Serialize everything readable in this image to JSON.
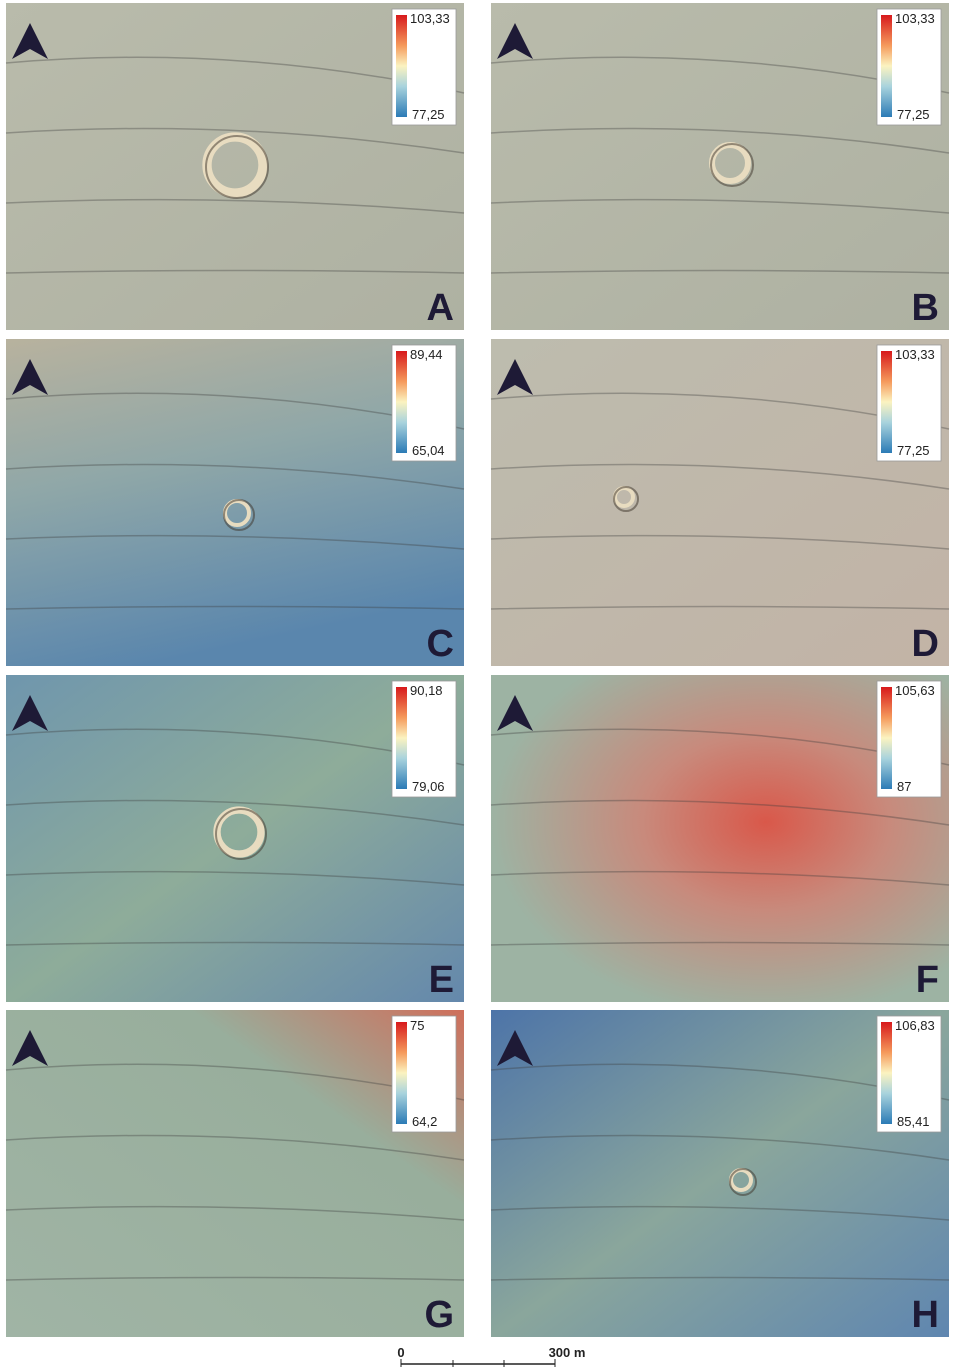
{
  "panels": [
    {
      "letter": "A",
      "legend_max": "103,33",
      "legend_min": "77,25"
    },
    {
      "letter": "B",
      "legend_max": "103,33",
      "legend_min": "77,25"
    },
    {
      "letter": "C",
      "legend_max": "89,44",
      "legend_min": "65,04"
    },
    {
      "letter": "D",
      "legend_max": "103,33",
      "legend_min": "77,25"
    },
    {
      "letter": "E",
      "legend_max": "90,18",
      "legend_min": "79,06"
    },
    {
      "letter": "F",
      "legend_max": "105,63",
      "legend_min": "87"
    },
    {
      "letter": "G",
      "legend_max": "75",
      "legend_min": "64,2"
    },
    {
      "letter": "H",
      "legend_max": "106,83",
      "legend_min": "85,41"
    }
  ],
  "scale_bar": {
    "start": "0",
    "end": "300 m"
  }
}
